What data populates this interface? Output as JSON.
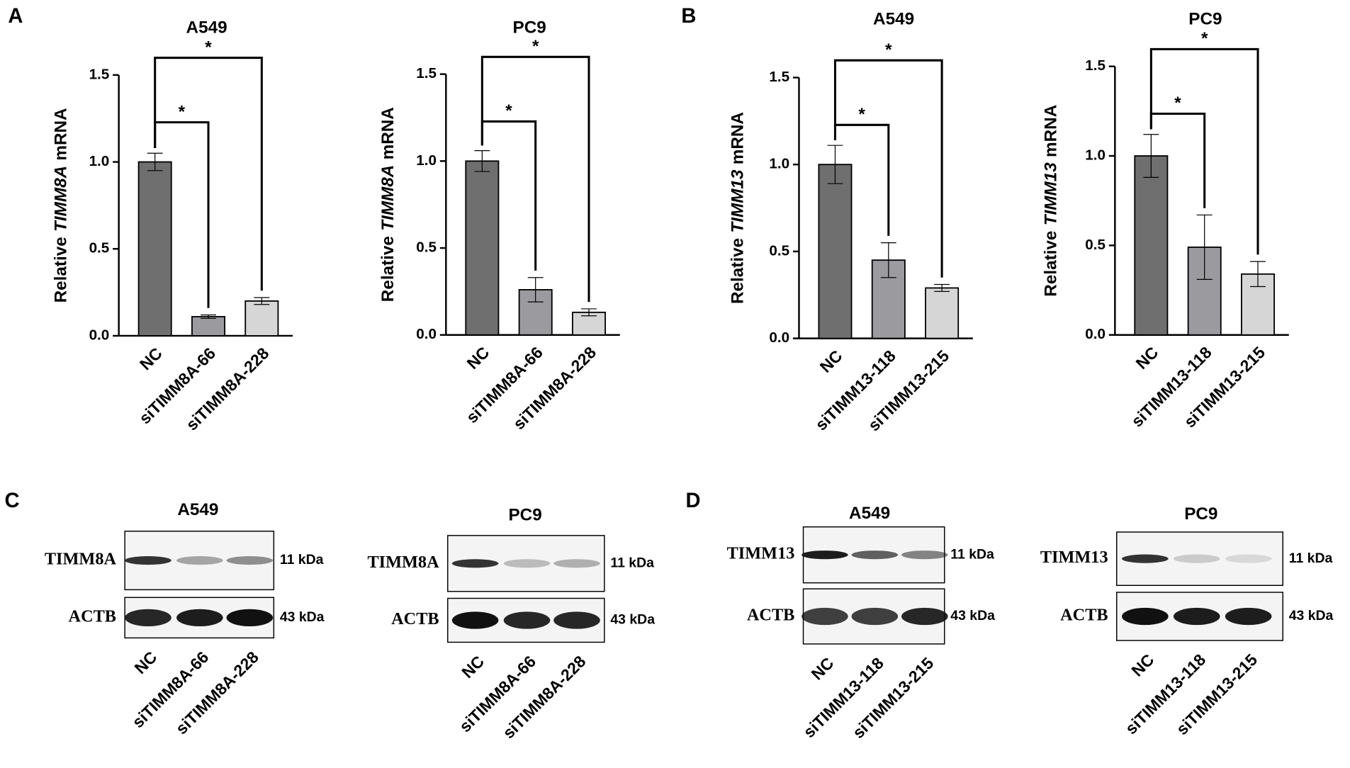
{
  "panels": [
    "A",
    "B",
    "C",
    "D"
  ],
  "chart_data": [
    {
      "type": "bar",
      "title": "A549",
      "ylabel_parts": [
        "Relative",
        "TIMM8A",
        "mRNA"
      ],
      "categories": [
        "NC",
        "siTIMM8A-66",
        "siTIMM8A-228"
      ],
      "values": [
        1.0,
        0.11,
        0.2
      ],
      "errors": [
        0.05,
        0.01,
        0.02
      ],
      "colors": [
        "#6f6f6f",
        "#9b9b9f",
        "#d6d6d6"
      ],
      "significance": [
        "*",
        "*"
      ],
      "ylim": [
        0,
        1.5
      ],
      "yticks": [
        {
          "value": 0,
          "label": "0.0"
        },
        0.5,
        {
          "value": 1,
          "label": "1.0"
        },
        1.5
      ]
    },
    {
      "type": "bar",
      "title": "PC9",
      "ylabel_parts": [
        "Relative",
        "TIMM8A",
        "mRNA"
      ],
      "categories": [
        "NC",
        "siTIMM8A-66",
        "siTIMM8A-228"
      ],
      "values": [
        1.0,
        0.26,
        0.13
      ],
      "errors": [
        0.06,
        0.07,
        0.02
      ],
      "colors": [
        "#6f6f6f",
        "#9b9b9f",
        "#d6d6d6"
      ],
      "significance": [
        "*",
        "*"
      ],
      "ylim": [
        0,
        1.5
      ],
      "yticks": [
        {
          "value": 0,
          "label": "0.0"
        },
        0.5,
        {
          "value": 1,
          "label": "1.0"
        },
        1.5
      ]
    },
    {
      "type": "bar",
      "title": "A549",
      "ylabel_parts": [
        "Relative",
        "TIMM13",
        "mRNA"
      ],
      "categories": [
        "NC",
        "siTIMM13-118",
        "siTIMM13-215"
      ],
      "values": [
        1.0,
        0.45,
        0.29
      ],
      "errors": [
        0.11,
        0.1,
        0.02
      ],
      "colors": [
        "#6f6f6f",
        "#9b9b9f",
        "#d6d6d6"
      ],
      "significance": [
        "*",
        "*"
      ],
      "ylim": [
        0,
        1.5
      ],
      "yticks": [
        {
          "value": 0,
          "label": "0.0"
        },
        0.5,
        {
          "value": 1,
          "label": "1.0"
        },
        1.5
      ]
    },
    {
      "type": "bar",
      "title": "PC9",
      "ylabel_parts": [
        "Relative",
        "TIMM13",
        "mRNA"
      ],
      "categories": [
        "NC",
        "siTIMM13-118",
        "siTIMM13-215"
      ],
      "values": [
        1.0,
        0.49,
        0.34
      ],
      "errors": [
        0.12,
        0.18,
        0.07
      ],
      "colors": [
        "#6f6f6f",
        "#9b9b9f",
        "#d6d6d6"
      ],
      "significance": [
        "*",
        "*"
      ],
      "ylim": [
        0,
        1.5
      ],
      "yticks": [
        {
          "value": 0,
          "label": "0.0"
        },
        0.5,
        {
          "value": 1,
          "label": "1.0"
        },
        1.5
      ]
    }
  ],
  "blots": [
    {
      "title": "A549",
      "proteins": [
        {
          "name": "TIMM8A",
          "size": "11 kDa"
        },
        {
          "name": "ACTB",
          "size": "43 kDa"
        }
      ],
      "lanes": [
        "NC",
        "siTIMM8A-66",
        "siTIMM8A-228"
      ]
    },
    {
      "title": "PC9",
      "proteins": [
        {
          "name": "TIMM8A",
          "size": "11 kDa"
        },
        {
          "name": "ACTB",
          "size": "43 kDa"
        }
      ],
      "lanes": [
        "NC",
        "siTIMM8A-66",
        "siTIMM8A-228"
      ]
    },
    {
      "title": "A549",
      "proteins": [
        {
          "name": "TIMM13",
          "size": "11 kDa"
        },
        {
          "name": "ACTB",
          "size": "43 kDa"
        }
      ],
      "lanes": [
        "NC",
        "siTIMM13-118",
        "siTIMM13-215"
      ]
    },
    {
      "title": "PC9",
      "proteins": [
        {
          "name": "TIMM13",
          "size": "11 kDa"
        },
        {
          "name": "ACTB",
          "size": "43 kDa"
        }
      ],
      "lanes": [
        "NC",
        "siTIMM13-118",
        "siTIMM13-215"
      ]
    }
  ]
}
